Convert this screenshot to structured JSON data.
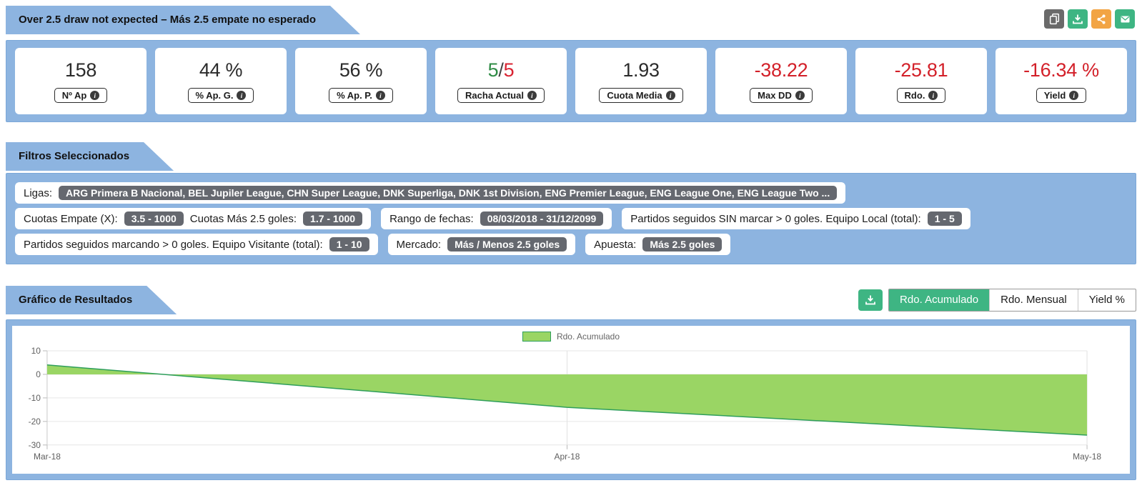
{
  "header": {
    "title": "Over 2.5 draw not expected – Más 2.5 empate no esperado",
    "actions": [
      {
        "icon": "copy-icon",
        "color": "#6a6a6a"
      },
      {
        "icon": "download-icon",
        "color": "#3eb583"
      },
      {
        "icon": "share-icon",
        "color": "#f2a444"
      },
      {
        "icon": "email-icon",
        "color": "#3eb583"
      }
    ]
  },
  "stats": [
    {
      "value": "158",
      "label": "Nº Ap",
      "tone": "dark"
    },
    {
      "value": "44 %",
      "label": "% Ap. G.",
      "tone": "dark"
    },
    {
      "value": "56 %",
      "label": "% Ap. P.",
      "tone": "dark"
    },
    {
      "value_parts": [
        {
          "text": "5",
          "color": "#2f8c46"
        },
        {
          "text": "/",
          "color": "#444444"
        },
        {
          "text": "5",
          "color": "#d92332"
        }
      ],
      "label": "Racha Actual",
      "tone": "mixed"
    },
    {
      "value": "1.93",
      "label": "Cuota Media",
      "tone": "dark"
    },
    {
      "value": "-38.22",
      "label": "Max DD",
      "tone": "red"
    },
    {
      "value": "-25.81",
      "label": "Rdo.",
      "tone": "red"
    },
    {
      "value": "-16.34 %",
      "label": "Yield",
      "tone": "red"
    }
  ],
  "filters": {
    "title": "Filtros Seleccionados",
    "rows": [
      [
        {
          "segments": [
            {
              "label": "Ligas:",
              "badge": "ARG Primera B Nacional, BEL Jupiler League, CHN Super League, DNK Superliga, DNK 1st Division, ENG Premier League, ENG League One, ENG League Two ..."
            }
          ]
        }
      ],
      [
        {
          "segments": [
            {
              "label": "Cuotas Empate (X):",
              "badge": "3.5 - 1000"
            },
            {
              "label": "Cuotas Más 2.5 goles:",
              "badge": "1.7 - 1000"
            }
          ]
        },
        {
          "segments": [
            {
              "label": "Rango de fechas:",
              "badge": "08/03/2018 - 31/12/2099"
            }
          ]
        },
        {
          "segments": [
            {
              "label": "Partidos seguidos SIN marcar > 0 goles. Equipo Local (total):",
              "badge": "1 - 5"
            }
          ]
        }
      ],
      [
        {
          "segments": [
            {
              "label": "Partidos seguidos marcando > 0 goles. Equipo Visitante (total):",
              "badge": "1 - 10"
            }
          ]
        },
        {
          "segments": [
            {
              "label": "Mercado:",
              "badge": "Más / Menos 2.5 goles"
            }
          ]
        },
        {
          "segments": [
            {
              "label": "Apuesta:",
              "badge": "Más 2.5 goles"
            }
          ]
        }
      ]
    ]
  },
  "chart_section": {
    "title": "Gráfico de Resultados",
    "download_color": "#3eb583",
    "active_tab_color": "#3eb583",
    "tabs": [
      {
        "label": "Rdo. Acumulado",
        "active": true
      },
      {
        "label": "Rdo. Mensual",
        "active": false
      },
      {
        "label": "Yield %",
        "active": false
      }
    ]
  },
  "chart_data": {
    "type": "area",
    "title": "",
    "x_ticks": [
      "Mar-18",
      "Apr-18",
      "May-18"
    ],
    "y_ticks": [
      10,
      0,
      -10,
      -20,
      -30
    ],
    "ylim": [
      -30,
      10
    ],
    "baseline": 0,
    "grid": true,
    "legend_position": "top-center",
    "series": [
      {
        "name": "Rdo. Acumulado",
        "points": [
          {
            "x": "Mar-18",
            "y": 4
          },
          {
            "x": "Apr-18",
            "y": -14
          },
          {
            "x": "May-18",
            "y": -25.81
          }
        ],
        "fill": "#9ad564",
        "line": "#2e9e5b"
      }
    ]
  }
}
